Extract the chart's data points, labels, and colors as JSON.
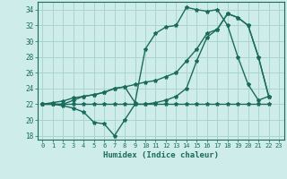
{
  "xlabel": "Humidex (Indice chaleur)",
  "bg_color": "#ceecea",
  "grid_color": "#a8d4d2",
  "line_color": "#1a6b5c",
  "xlim": [
    -0.5,
    23.5
  ],
  "ylim": [
    17.5,
    35
  ],
  "xticks": [
    0,
    1,
    2,
    3,
    4,
    5,
    6,
    7,
    8,
    9,
    10,
    11,
    12,
    13,
    14,
    15,
    16,
    17,
    18,
    19,
    20,
    21,
    22,
    23
  ],
  "yticks": [
    18,
    20,
    22,
    24,
    26,
    28,
    30,
    32,
    34
  ],
  "line1_x": [
    0,
    1,
    2,
    3,
    4,
    5,
    6,
    7,
    8,
    9,
    10,
    11,
    12,
    13,
    14,
    15,
    16,
    17,
    18,
    19,
    20,
    21,
    22
  ],
  "line1_y": [
    22,
    22.2,
    22.4,
    22.8,
    23.0,
    23.2,
    23.5,
    24.0,
    24.2,
    22.2,
    29.0,
    31.0,
    31.8,
    32.0,
    34.3,
    34.0,
    33.8,
    34.0,
    32.0,
    28.0,
    24.5,
    22.5,
    23.0
  ],
  "line2_x": [
    0,
    1,
    2,
    3,
    4,
    5,
    6,
    7,
    8,
    9,
    10,
    11,
    12,
    13,
    14,
    15,
    16,
    17,
    18,
    19,
    20,
    21,
    22
  ],
  "line2_y": [
    22,
    22,
    22,
    22,
    22,
    22,
    22,
    22,
    22,
    22,
    22,
    22,
    22,
    22,
    22,
    22,
    22,
    22,
    22,
    22,
    22,
    22,
    22
  ],
  "line3_x": [
    0,
    1,
    2,
    3,
    4,
    5,
    6,
    7,
    8,
    9,
    10,
    11,
    12,
    13,
    14,
    15,
    16,
    17,
    18,
    19,
    20,
    21,
    22
  ],
  "line3_y": [
    22,
    22,
    21.8,
    21.5,
    21.0,
    19.7,
    19.5,
    18.0,
    20.0,
    22.0,
    22.0,
    22.2,
    22.5,
    23.0,
    24.0,
    27.5,
    30.5,
    31.5,
    33.5,
    33.0,
    32.0,
    28.0,
    23.0
  ],
  "line4_x": [
    0,
    1,
    2,
    3,
    4,
    5,
    6,
    7,
    8,
    9,
    10,
    11,
    12,
    13,
    14,
    15,
    16,
    17,
    18,
    19,
    20,
    21,
    22
  ],
  "line4_y": [
    22,
    22,
    22,
    22.5,
    23.0,
    23.2,
    23.5,
    24.0,
    24.2,
    24.5,
    24.8,
    25.0,
    25.5,
    26.0,
    27.5,
    29.0,
    31.0,
    31.5,
    33.5,
    33.0,
    32.0,
    28.0,
    23.0
  ]
}
